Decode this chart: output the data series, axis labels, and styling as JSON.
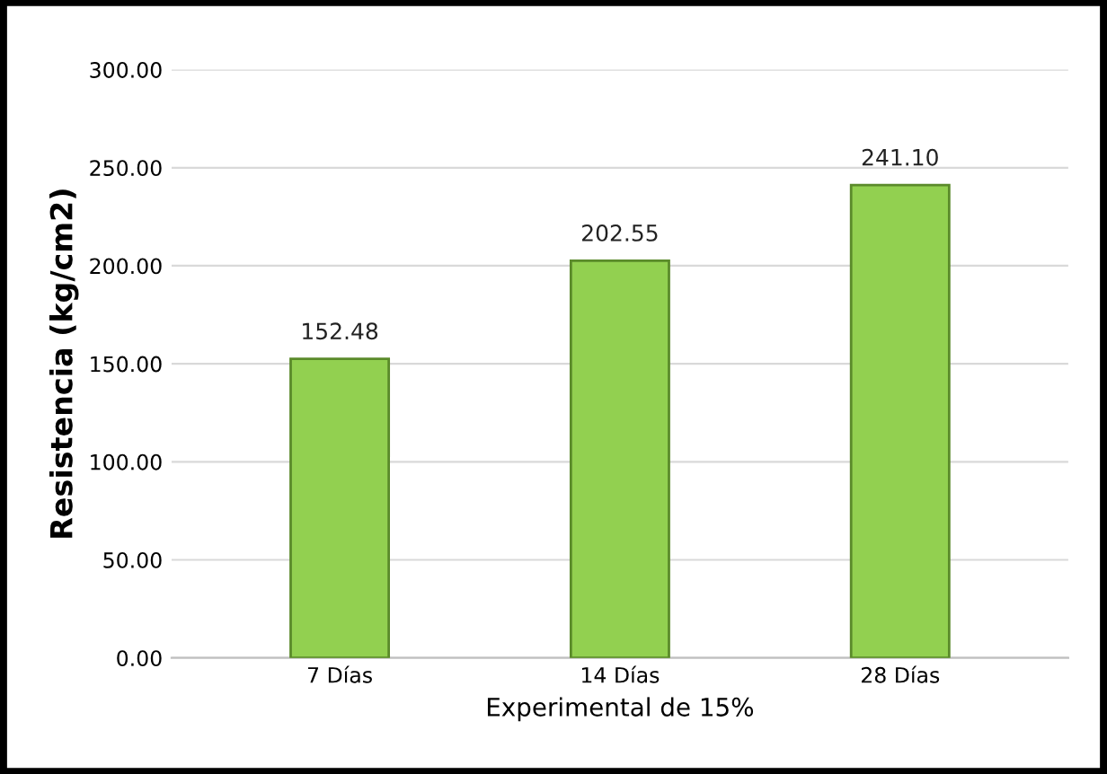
{
  "chart_data": {
    "type": "bar",
    "xlabel": "Experimental de 15%",
    "ylabel": "Resistencia (kg/cm2)",
    "categories": [
      "7 Días",
      "14 Días",
      "28 Días"
    ],
    "values": [
      152.48,
      202.55,
      241.1
    ],
    "value_labels": [
      "152.48",
      "202.55",
      "241.10"
    ],
    "color": "#92d050",
    "ylim": [
      0,
      300
    ],
    "yticks": [
      {
        "value": 0,
        "label": "0.00"
      },
      {
        "value": 50,
        "label": "50.00"
      },
      {
        "value": 100,
        "label": "100.00"
      },
      {
        "value": 150,
        "label": "150.00"
      },
      {
        "value": 200,
        "label": "200.00"
      },
      {
        "value": 250,
        "label": "250.00"
      },
      {
        "value": 300,
        "label": "300.00"
      }
    ],
    "grid": "y",
    "legend": false
  }
}
